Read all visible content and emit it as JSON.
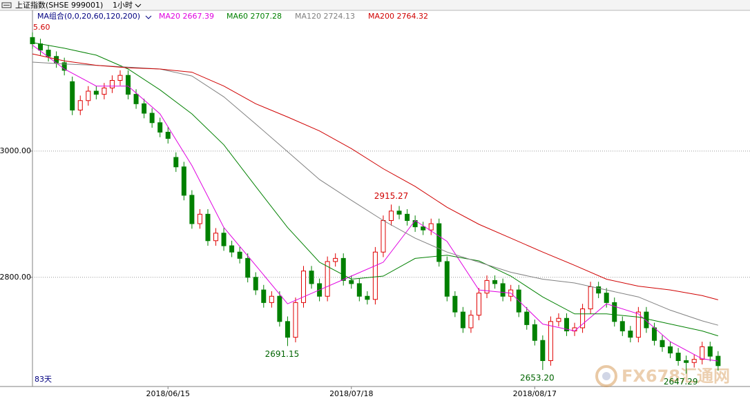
{
  "chart_data": {
    "type": "candlestick",
    "title": "上证指数(SHSE 999001)",
    "period": "1小时",
    "indicator": "MA组合(0,0,20,60,120,200)",
    "footnote": "83天",
    "watermark": "FX678汇通网",
    "top_label": "5.60",
    "grid": true,
    "up_color": "#e00000",
    "down_color": "#008000",
    "xlim": [
      0,
      90
    ],
    "xticks": [
      {
        "value": 17,
        "label": "2018/06/15"
      },
      {
        "value": 40,
        "label": "2018/07/18"
      },
      {
        "value": 63,
        "label": "2018/08/17"
      }
    ],
    "ylim": [
      2627,
      3223
    ],
    "yticks": [
      {
        "value": 2800,
        "label": "2800.00"
      },
      {
        "value": 3000,
        "label": "3000.00"
      }
    ],
    "open": [
      3180,
      3170,
      3160,
      3150,
      3140,
      3110,
      3065,
      3080,
      3095,
      3090,
      3100,
      3112,
      3120,
      3090,
      3075,
      3060,
      3045,
      3030,
      2990,
      2975,
      2930,
      2885,
      2900,
      2858,
      2870,
      2850,
      2840,
      2830,
      2800,
      2780,
      2760,
      2770,
      2730,
      2705,
      2760,
      2810,
      2790,
      2770,
      2825,
      2830,
      2795,
      2790,
      2770,
      2765,
      2840,
      2890,
      2905,
      2900,
      2890,
      2880,
      2875,
      2885,
      2825,
      2770,
      2745,
      2720,
      2740,
      2775,
      2795,
      2790,
      2770,
      2780,
      2745,
      2725,
      2700,
      2668,
      2730,
      2735,
      2715,
      2720,
      2750,
      2785,
      2775,
      2760,
      2730,
      2715,
      2705,
      2745,
      2720,
      2700,
      2690,
      2680,
      2668,
      2665,
      2670,
      2690,
      2675
    ],
    "high": [
      3188,
      3178,
      3168,
      3158,
      3148,
      3118,
      3088,
      3103,
      3103,
      3108,
      3120,
      3128,
      3128,
      3098,
      3083,
      3068,
      3053,
      3038,
      2998,
      2983,
      2938,
      2908,
      2908,
      2878,
      2878,
      2858,
      2848,
      2838,
      2808,
      2788,
      2778,
      2778,
      2738,
      2768,
      2818,
      2818,
      2798,
      2833,
      2838,
      2838,
      2803,
      2798,
      2778,
      2848,
      2898,
      2915.27,
      2913,
      2908,
      2898,
      2888,
      2893,
      2893,
      2833,
      2778,
      2753,
      2748,
      2783,
      2803,
      2803,
      2798,
      2788,
      2788,
      2753,
      2733,
      2708,
      2738,
      2743,
      2743,
      2728,
      2758,
      2793,
      2793,
      2783,
      2768,
      2738,
      2723,
      2753,
      2753,
      2728,
      2708,
      2698,
      2688,
      2676,
      2678,
      2698,
      2698,
      2683
    ],
    "low": [
      3162,
      3152,
      3142,
      3132,
      3120,
      3057,
      3057,
      3072,
      3082,
      3082,
      3092,
      3104,
      3082,
      3067,
      3052,
      3037,
      3022,
      3012,
      2967,
      2922,
      2877,
      2877,
      2850,
      2850,
      2842,
      2832,
      2822,
      2792,
      2772,
      2752,
      2752,
      2722,
      2691.15,
      2697,
      2752,
      2782,
      2762,
      2762,
      2817,
      2787,
      2782,
      2762,
      2757,
      2757,
      2832,
      2882,
      2892,
      2882,
      2872,
      2867,
      2867,
      2817,
      2762,
      2737,
      2712,
      2712,
      2732,
      2767,
      2782,
      2762,
      2762,
      2737,
      2717,
      2692,
      2653.2,
      2660,
      2722,
      2707,
      2707,
      2712,
      2742,
      2767,
      2752,
      2722,
      2707,
      2697,
      2697,
      2712,
      2692,
      2682,
      2672,
      2660,
      2647.29,
      2657,
      2662,
      2667,
      2652
    ],
    "close": [
      3170,
      3160,
      3150,
      3140,
      3128,
      3065,
      3080,
      3095,
      3090,
      3100,
      3112,
      3120,
      3090,
      3075,
      3060,
      3045,
      3030,
      3020,
      2975,
      2930,
      2885,
      2900,
      2858,
      2870,
      2850,
      2840,
      2830,
      2800,
      2780,
      2760,
      2770,
      2730,
      2705,
      2760,
      2810,
      2790,
      2770,
      2825,
      2830,
      2795,
      2790,
      2770,
      2765,
      2840,
      2890,
      2905,
      2900,
      2890,
      2880,
      2875,
      2885,
      2825,
      2770,
      2745,
      2720,
      2740,
      2775,
      2795,
      2790,
      2770,
      2780,
      2745,
      2725,
      2700,
      2668,
      2730,
      2735,
      2715,
      2720,
      2750,
      2785,
      2775,
      2760,
      2730,
      2715,
      2705,
      2745,
      2720,
      2700,
      2690,
      2680,
      2668,
      2665,
      2670,
      2690,
      2675,
      2660
    ],
    "annotations": [
      {
        "label": "2691.15",
        "value": 2691.15,
        "index": 32,
        "color": "#006400"
      },
      {
        "label": "2915.27",
        "value": 2915.27,
        "index": 45,
        "color": "#d00000"
      },
      {
        "label": "2653.20",
        "value": 2653.2,
        "index": 64,
        "color": "#006400"
      },
      {
        "label": "2647.29",
        "value": 2647.29,
        "index": 82,
        "color": "#006400"
      }
    ],
    "series": [
      {
        "name": "MA20",
        "color": "#e000e0",
        "x": [
          0,
          4,
          8,
          12,
          16,
          20,
          24,
          28,
          32,
          36,
          40,
          44,
          48,
          52,
          56,
          60,
          64,
          68,
          72,
          76,
          80,
          84,
          86
        ],
        "values": [
          3168,
          3130,
          3103,
          3103,
          3059,
          2977,
          2879,
          2819,
          2758,
          2780,
          2802,
          2824,
          2890,
          2857,
          2780,
          2775,
          2726,
          2715,
          2758,
          2742,
          2698,
          2671,
          2667.39
        ]
      },
      {
        "name": "MA60",
        "color": "#008000",
        "x": [
          0,
          4,
          8,
          12,
          16,
          20,
          24,
          28,
          32,
          36,
          40,
          44,
          48,
          52,
          56,
          60,
          64,
          68,
          72,
          76,
          80,
          84,
          86
        ],
        "values": [
          3172,
          3163,
          3152,
          3130,
          3097,
          3059,
          3010,
          2944,
          2879,
          2824,
          2797,
          2802,
          2830,
          2835,
          2826,
          2802,
          2769,
          2742,
          2742,
          2737,
          2726,
          2715,
          2707.28
        ]
      },
      {
        "name": "MA120",
        "color": "#808080",
        "x": [
          0,
          4,
          8,
          12,
          16,
          20,
          24,
          28,
          32,
          36,
          40,
          44,
          48,
          52,
          56,
          60,
          64,
          68,
          72,
          76,
          80,
          84,
          86
        ],
        "values": [
          3141,
          3138,
          3136,
          3133,
          3130,
          3119,
          3086,
          3043,
          2999,
          2955,
          2922,
          2890,
          2862,
          2840,
          2824,
          2808,
          2797,
          2791,
          2780,
          2769,
          2748,
          2731,
          2724.13
        ]
      },
      {
        "name": "MA200",
        "color": "#d00000",
        "x": [
          0,
          4,
          8,
          12,
          16,
          20,
          24,
          28,
          32,
          36,
          40,
          44,
          48,
          52,
          56,
          60,
          64,
          68,
          72,
          76,
          80,
          84,
          86
        ],
        "values": [
          3154,
          3143,
          3136,
          3132,
          3130,
          3125,
          3103,
          3075,
          3054,
          3032,
          3004,
          2972,
          2944,
          2911,
          2884,
          2862,
          2840,
          2819,
          2797,
          2786,
          2780,
          2771,
          2764.32
        ]
      }
    ]
  }
}
